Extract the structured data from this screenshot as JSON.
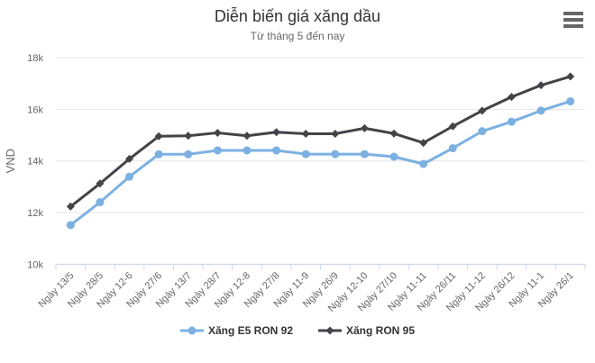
{
  "chart_data": {
    "type": "line",
    "title": "Diễn biến giá xăng dầu",
    "subtitle": "Từ tháng 5 đến nay",
    "xlabel": "",
    "ylabel": "VND",
    "unit": "VND",
    "ylim": [
      10000,
      18000
    ],
    "yticks": [
      {
        "value": 10000,
        "label": "10k"
      },
      {
        "value": 12000,
        "label": "12k"
      },
      {
        "value": 14000,
        "label": "14k"
      },
      {
        "value": 16000,
        "label": "16k"
      },
      {
        "value": 18000,
        "label": "18k"
      }
    ],
    "grid": true,
    "legend_position": "bottom",
    "categories": [
      "Ngày 13/5",
      "Ngày 28/5",
      "Ngày 12-6",
      "Ngày 27/6",
      "Ngày 13/7",
      "Ngày 28/7",
      "Ngày 12-8",
      "Ngày 27/8",
      "Ngày 11-9",
      "Ngày 26/9",
      "Ngày 12-10",
      "Ngày 27/10",
      "Ngày 11-11",
      "Ngày 26/11",
      "Ngày 11-12",
      "Ngày 26/12",
      "Ngày 11-1",
      "Ngày 26/1"
    ],
    "series": [
      {
        "name": "Xăng E5 RON 92",
        "color": "#7cb0e2",
        "marker": "circle",
        "values": [
          11520,
          12402,
          13390,
          14258,
          14258,
          14409,
          14409,
          14409,
          14266,
          14266,
          14266,
          14164,
          13885,
          14494,
          15153,
          15518,
          15948,
          16309
        ]
      },
      {
        "name": "Xăng RON 95",
        "color": "#434348",
        "marker": "diamond",
        "values": [
          12235,
          13125,
          14080,
          14956,
          14973,
          15090,
          14973,
          15114,
          15055,
          15055,
          15268,
          15061,
          14701,
          15341,
          15946,
          16479,
          16930,
          17270
        ]
      }
    ]
  },
  "menu": {
    "icon": "hamburger-icon"
  },
  "colors": {
    "background": "#ffffff",
    "title": "#333333",
    "subtitle": "#666666",
    "label": "#666666",
    "grid": "#e6e6e6",
    "axis_line": "#ccd6eb",
    "legend_text": "#333333",
    "menu_icon": "#666666"
  }
}
